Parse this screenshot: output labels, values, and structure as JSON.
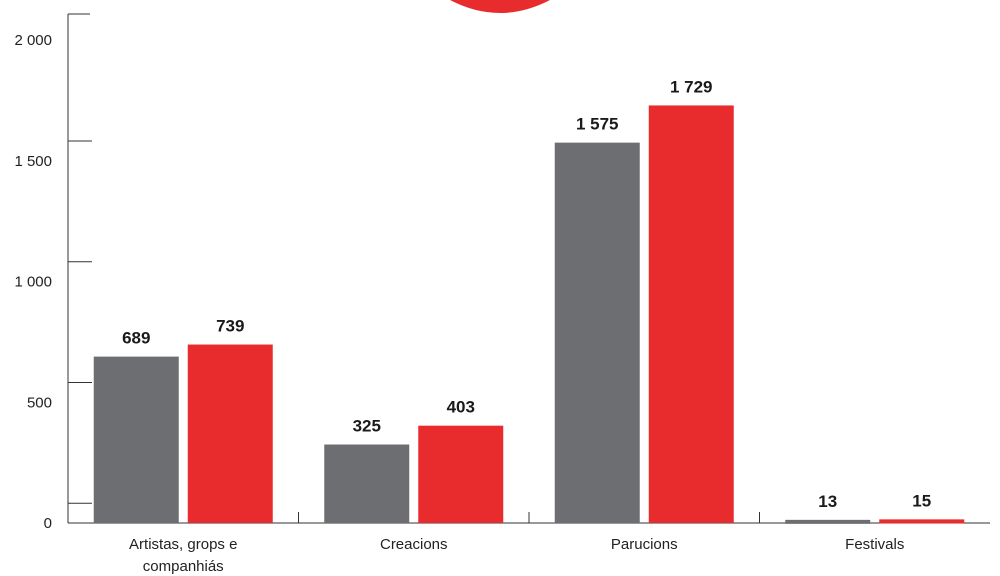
{
  "chart_data": {
    "type": "bar",
    "categories": [
      [
        "Artistas, grops e",
        "companhiás"
      ],
      [
        "Creacions"
      ],
      [
        "Parucions"
      ],
      [
        "Festivals"
      ]
    ],
    "series": [
      {
        "color": "#6d6e71",
        "values": [
          689,
          325,
          1575,
          13
        ],
        "labels": [
          "689",
          "325",
          "1 575",
          "13"
        ]
      },
      {
        "color": "#e82c2e",
        "values": [
          739,
          403,
          1729,
          15
        ],
        "labels": [
          "739",
          "403",
          "1 729",
          "15"
        ]
      }
    ],
    "yticks": [
      {
        "value": 0,
        "label": "0"
      },
      {
        "value": 500,
        "label": "500"
      },
      {
        "value": 1000,
        "label": "1 000"
      },
      {
        "value": 1500,
        "label": "1 500"
      },
      {
        "value": 2000,
        "label": "2 000"
      }
    ],
    "ylim": [
      0,
      2000
    ],
    "grid": false,
    "legend": "none",
    "accent_shape_color": "#e82c2e"
  }
}
